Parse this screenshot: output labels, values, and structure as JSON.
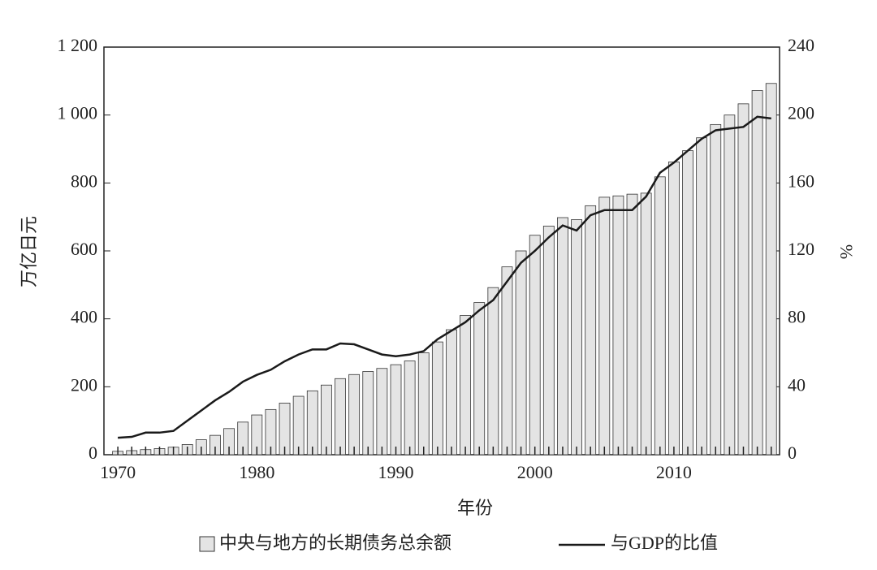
{
  "chart_data": {
    "type": "bar",
    "x": [
      1970,
      1971,
      1972,
      1973,
      1974,
      1975,
      1976,
      1977,
      1978,
      1979,
      1980,
      1981,
      1982,
      1983,
      1984,
      1985,
      1986,
      1987,
      1988,
      1989,
      1990,
      1991,
      1992,
      1993,
      1994,
      1995,
      1996,
      1997,
      1998,
      1999,
      2000,
      2001,
      2002,
      2003,
      2004,
      2005,
      2006,
      2007,
      2008,
      2009,
      2010,
      2011,
      2012,
      2013,
      2014,
      2015,
      2016,
      2017
    ],
    "series": [
      {
        "name": "中央与地方的长期债务总余额",
        "type": "bar",
        "axis": "y",
        "color": "#e4e4e4",
        "values": [
          10,
          12,
          15,
          18,
          22,
          30,
          44,
          57,
          77,
          96,
          117,
          133,
          152,
          172,
          188,
          205,
          224,
          236,
          245,
          254,
          265,
          276,
          300,
          332,
          368,
          410,
          448,
          492,
          553,
          600,
          646,
          673,
          698,
          692,
          733,
          758,
          762,
          767,
          770,
          818,
          862,
          895,
          933,
          972,
          1000,
          1033,
          1072,
          1093
        ]
      },
      {
        "name": "与GDP的比值",
        "type": "line",
        "axis": "y2",
        "color": "#1a1a1a",
        "values": [
          10,
          10.5,
          13,
          13,
          14,
          20,
          26,
          32,
          37,
          43,
          47,
          50,
          55,
          59,
          62,
          62,
          65.5,
          65,
          62,
          59,
          58,
          59,
          61,
          68,
          73,
          78,
          85,
          91,
          102,
          113,
          120,
          128,
          135,
          132,
          141,
          144,
          144,
          144,
          152,
          166,
          172,
          179,
          186,
          191,
          192,
          193,
          199,
          198
        ]
      }
    ],
    "xlabel": "年份",
    "ylabel": "万亿日元",
    "y2label": "%",
    "xlim": [
      1969,
      2017.6
    ],
    "xticks": [
      1970,
      1980,
      1990,
      2000,
      2010
    ],
    "ylim": [
      0,
      1200
    ],
    "yticks": [
      0,
      200,
      400,
      600,
      800,
      {
        "value": 1000,
        "label": "1 000"
      },
      {
        "value": 1200,
        "label": "1 200"
      }
    ],
    "y2lim": [
      0,
      240
    ],
    "y2ticks": [
      0,
      40,
      80,
      120,
      160,
      200,
      240
    ]
  }
}
